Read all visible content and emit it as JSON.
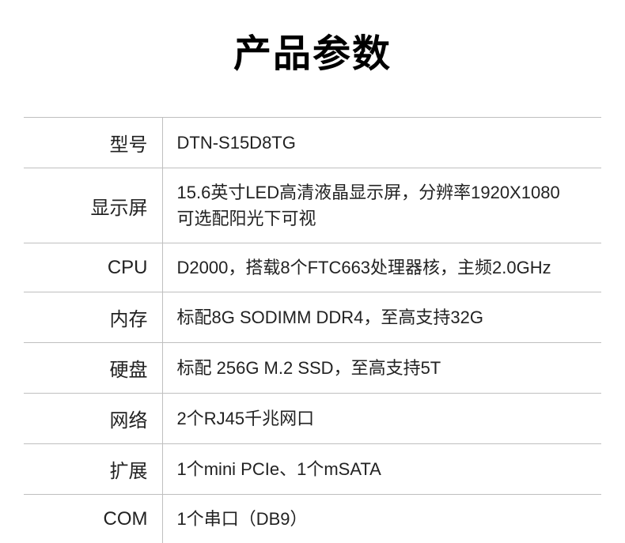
{
  "title": "产品参数",
  "title_fontsize": 48,
  "label_fontsize": 24,
  "value_fontsize": 22,
  "border_color": "#bfbfbf",
  "text_color": "#222222",
  "background_color": "#ffffff",
  "rows": [
    {
      "label": "型号",
      "value": "DTN-S15D8TG"
    },
    {
      "label": "显示屏",
      "value": "15.6英寸LED高清液晶显示屏，分辨率1920X1080\n可选配阳光下可视"
    },
    {
      "label": "CPU",
      "value": "D2000，搭载8个FTC663处理器核，主频2.0GHz"
    },
    {
      "label": "内存",
      "value": "标配8G SODIMM DDR4，至高支持32G"
    },
    {
      "label": "硬盘",
      "value": "标配 256G M.2 SSD，至高支持5T"
    },
    {
      "label": "网络",
      "value": "2个RJ45千兆网口"
    },
    {
      "label": "扩展",
      "value": "1个mini PCIe、1个mSATA"
    },
    {
      "label": "COM",
      "value": "1个串口（DB9）"
    }
  ]
}
